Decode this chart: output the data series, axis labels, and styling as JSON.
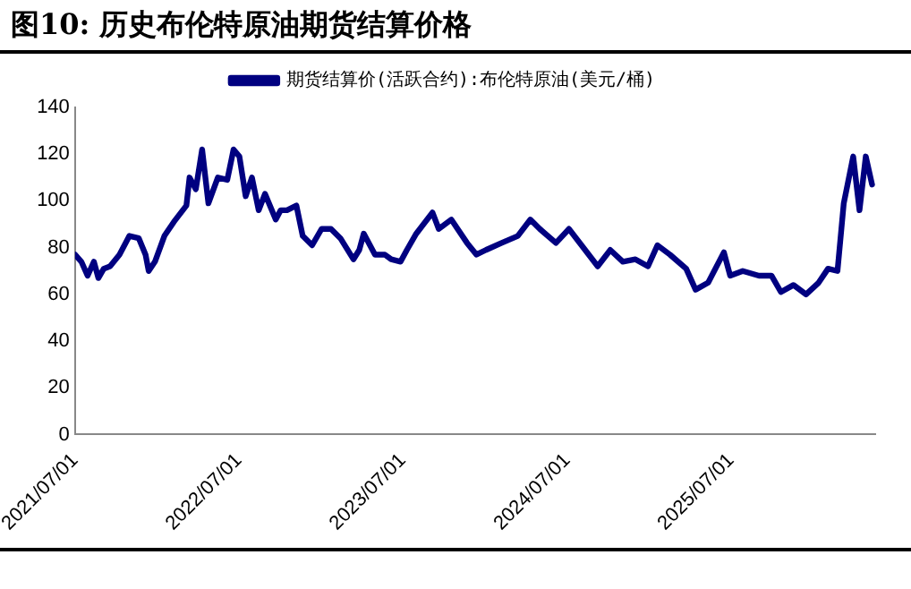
{
  "chart_data": {
    "type": "line",
    "title": "图10:  历史布伦特原油期货结算价格",
    "x": [
      "2021-07-01",
      "2021-07-15",
      "2021-07-29",
      "2021-08-12",
      "2021-08-22",
      "2021-09-03",
      "2021-09-17",
      "2021-10-08",
      "2021-10-30",
      "2021-11-20",
      "2021-12-05",
      "2021-12-12",
      "2021-12-26",
      "2022-01-16",
      "2022-02-06",
      "2022-03-06",
      "2022-03-13",
      "2022-03-27",
      "2022-04-10",
      "2022-04-24",
      "2022-05-15",
      "2022-06-05",
      "2022-06-19",
      "2022-07-02",
      "2022-07-16",
      "2022-07-30",
      "2022-08-14",
      "2022-08-28",
      "2022-09-21",
      "2022-10-02",
      "2022-10-16",
      "2022-11-06",
      "2022-11-20",
      "2022-12-11",
      "2023-01-01",
      "2023-01-22",
      "2023-02-12",
      "2023-03-13",
      "2023-03-26",
      "2023-04-05",
      "2023-04-30",
      "2023-05-22",
      "2023-06-05",
      "2023-06-26",
      "2023-07-10",
      "2023-07-31",
      "2023-09-05",
      "2023-09-19",
      "2023-10-17",
      "2023-11-21",
      "2023-12-12",
      "2024-01-02",
      "2024-02-06",
      "2024-03-13",
      "2024-04-10",
      "2024-05-01",
      "2024-06-06",
      "2024-07-05",
      "2024-08-02",
      "2024-09-07",
      "2024-10-05",
      "2024-11-02",
      "2024-11-30",
      "2024-12-28",
      "2025-01-18",
      "2025-02-15",
      "2025-03-23",
      "2025-04-13",
      "2025-05-11",
      "2025-06-15",
      "2025-06-29",
      "2025-07-27",
      "2025-09-01",
      "2025-09-29",
      "2025-10-20",
      "2025-11-17",
      "2025-12-15",
      "2026-01-12",
      "2026-02-02",
      "2026-02-23",
      "2026-03-09",
      "2026-03-30",
      "2026-04-13",
      "2026-04-27",
      "2026-05-11"
    ],
    "series": [
      {
        "name": "期货结算价(活跃合约):布伦特原油(美元/桶)",
        "color": "#000080",
        "values": [
          77,
          74,
          68,
          74,
          67,
          71,
          72,
          77,
          85,
          84,
          77,
          70,
          74,
          85,
          91,
          98,
          110,
          105,
          122,
          99,
          110,
          109,
          122,
          119,
          102,
          110,
          96,
          103,
          92,
          96,
          96,
          98,
          85,
          81,
          88,
          88,
          84,
          75,
          79,
          86,
          77,
          77,
          75,
          74,
          79,
          86,
          95,
          88,
          92,
          82,
          77,
          79,
          82,
          85,
          92,
          88,
          82,
          88,
          81,
          72,
          79,
          74,
          75,
          72,
          81,
          77,
          71,
          62,
          65,
          78,
          68,
          70,
          68,
          68,
          61,
          64,
          60,
          65,
          71,
          70,
          99,
          119,
          96,
          119,
          107
        ]
      }
    ],
    "xlim": [
      "2021-07-01",
      "2026-05-18"
    ],
    "xticks": [
      {
        "value": "2021-07-01",
        "label": "2021/07/01"
      },
      {
        "value": "2022-07-01",
        "label": "2022/07/01"
      },
      {
        "value": "2023-07-01",
        "label": "2023/07/01"
      },
      {
        "value": "2024-07-01",
        "label": "2024/07/01"
      },
      {
        "value": "2025-07-01",
        "label": "2025/07/01"
      }
    ],
    "ylim": [
      0,
      140
    ],
    "yticks": [
      0,
      20,
      40,
      60,
      80,
      100,
      120,
      140
    ],
    "grid": false,
    "legend": "top",
    "marker": "none",
    "line_style": "solid"
  }
}
